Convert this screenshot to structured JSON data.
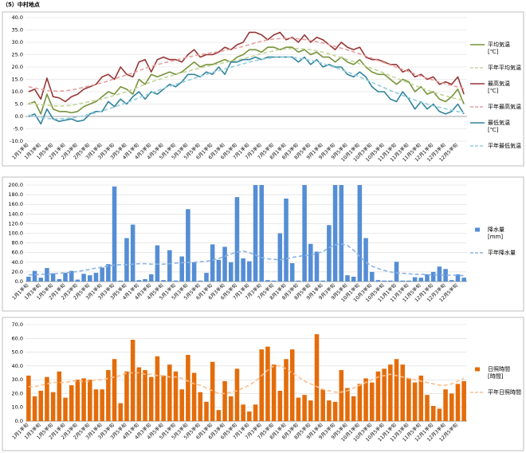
{
  "title": "（5）中村地点",
  "chart_data": [
    {
      "type": "line",
      "categories": [
        "1月1半旬",
        null,
        "1月3半旬",
        null,
        "1月5半旬",
        null,
        "2月1半旬",
        null,
        "2月3半旬",
        null,
        "2月5半旬",
        null,
        "3月1半旬",
        null,
        "3月3半旬",
        null,
        "3月5半旬",
        null,
        "4月1半旬",
        null,
        "4月3半旬",
        null,
        "4月5半旬",
        null,
        "5月1半旬",
        null,
        "5月3半旬",
        null,
        "5月5半旬",
        null,
        "6月1半旬",
        null,
        "6月3半旬",
        null,
        "6月5半旬",
        null,
        "7月1半旬",
        null,
        "7月3半旬",
        null,
        "7月5半旬",
        null,
        "8月1半旬",
        null,
        "8月3半旬",
        null,
        "8月5半旬",
        null,
        "9月1半旬",
        null,
        "9月3半旬",
        null,
        "9月5半旬",
        null,
        "10月1半旬",
        null,
        "10月3半旬",
        null,
        "10月5半旬",
        null,
        "11月1半旬",
        null,
        "11月3半旬",
        null,
        "11月5半旬",
        null,
        "12月1半旬",
        null,
        "12月3半旬",
        null,
        "12月5半旬",
        null
      ],
      "ylim": [
        -10,
        40
      ],
      "yticks": [
        {
          "value": -10,
          "label": "-10.0"
        },
        {
          "value": -5,
          "label": "-5.0"
        },
        {
          "value": 0,
          "label": "0.0"
        },
        {
          "value": 5,
          "label": "5.0"
        },
        {
          "value": 10,
          "label": "10.0"
        },
        {
          "value": 15,
          "label": "15.0"
        },
        {
          "value": 20,
          "label": "20.0"
        },
        {
          "value": 25,
          "label": "25.0"
        },
        {
          "value": 30,
          "label": "30.0"
        },
        {
          "value": 35,
          "label": "35.0"
        },
        {
          "value": 40,
          "label": "40.0"
        }
      ],
      "grid": true,
      "series": [
        {
          "name": "平均気温\n[℃]",
          "color": "#77933c",
          "dash": false,
          "values": [
            5,
            6,
            1,
            9,
            3,
            2,
            2,
            1.5,
            2,
            4,
            5,
            6,
            8,
            10,
            9,
            12,
            11,
            9,
            15,
            13,
            17,
            16,
            17,
            18,
            17,
            18,
            20,
            22,
            20,
            21,
            21,
            22,
            23,
            22,
            24,
            25,
            27,
            27,
            26,
            28,
            28,
            27,
            28,
            28,
            26,
            27,
            25,
            26,
            24,
            24,
            22,
            24,
            22,
            21,
            23,
            20,
            18,
            17,
            17,
            15,
            13,
            15,
            14,
            10,
            12,
            9,
            10,
            7,
            6,
            8,
            11,
            5
          ]
        },
        {
          "name": "平年平均気温",
          "color": "#c3d69b",
          "dash": true,
          "values": [
            5.5,
            5,
            4.8,
            4.5,
            4.3,
            4.2,
            4.3,
            4.5,
            5,
            5.5,
            6,
            6.5,
            7,
            7.8,
            8.5,
            9.3,
            10,
            11,
            12,
            13,
            14,
            14.8,
            15.5,
            16.3,
            17,
            17.7,
            18.3,
            19,
            19.6,
            20.2,
            20.8,
            21.3,
            21.8,
            22.3,
            22.8,
            23.3,
            24,
            24.7,
            25.4,
            26,
            26.5,
            27,
            27.3,
            27.5,
            27.5,
            27.3,
            27,
            26.5,
            26,
            25.3,
            24.5,
            23.8,
            23,
            22.2,
            21.3,
            20.4,
            19.4,
            18.5,
            17.5,
            16.5,
            15.5,
            14.5,
            13.5,
            12.5,
            11.6,
            10.7,
            9.8,
            9,
            8.3,
            7.6,
            7,
            6.4
          ]
        },
        {
          "name": "最高気温\n[℃]",
          "color": "#953735",
          "dash": false,
          "values": [
            10,
            11,
            7,
            15.5,
            8,
            7.5,
            6,
            8,
            9,
            11,
            12,
            13,
            16,
            17,
            15,
            20,
            17,
            16,
            22,
            23,
            18,
            23,
            24,
            23,
            23,
            22,
            25,
            27,
            24,
            25,
            25,
            26,
            28,
            27,
            29,
            30,
            34,
            34,
            33,
            31,
            33,
            34,
            31,
            32,
            30,
            33,
            30,
            32,
            31,
            29,
            27,
            30,
            28,
            27,
            28,
            24,
            23,
            23,
            22,
            21,
            21,
            18,
            19,
            16,
            17,
            15,
            16,
            13,
            14,
            13,
            16,
            9
          ]
        },
        {
          "name": "平年最高気温",
          "color": "#e6a0a0",
          "dash": true,
          "values": [
            12,
            11.5,
            11,
            10.5,
            10.3,
            10.2,
            10.4,
            10.7,
            11.2,
            11.8,
            12.4,
            13,
            13.6,
            14.4,
            15.2,
            16,
            16.8,
            17.6,
            18.5,
            19.4,
            20.2,
            21,
            21.6,
            22.2,
            22.8,
            23.4,
            24,
            24.5,
            25,
            25.4,
            25.8,
            26.2,
            26.7,
            27.2,
            27.7,
            28.3,
            29,
            29.8,
            30.4,
            31,
            31.3,
            31.5,
            31.6,
            31.6,
            31.4,
            31.1,
            30.7,
            30.2,
            29.7,
            29,
            28.3,
            27.6,
            26.9,
            26.1,
            25.3,
            24.4,
            23.5,
            22.6,
            21.7,
            20.8,
            19.9,
            19,
            18.1,
            17.2,
            16.3,
            15.5,
            14.7,
            13.9,
            13.2,
            12.5,
            11.9,
            11.3
          ]
        },
        {
          "name": "最低気温\n[℃]",
          "color": "#31849b",
          "dash": false,
          "values": [
            0,
            1,
            -3,
            3,
            -1,
            -2,
            -1.5,
            -1,
            -2,
            -1.5,
            1,
            2,
            2,
            6,
            4,
            7,
            5,
            8,
            10,
            7,
            10,
            9,
            11,
            13,
            12,
            14,
            17,
            17,
            16,
            18,
            17,
            20,
            17,
            22,
            22,
            23,
            23,
            24,
            23,
            24,
            24,
            24,
            24,
            24,
            22,
            24,
            21,
            23,
            20,
            21,
            20,
            20,
            17,
            16,
            18,
            16,
            12,
            10,
            10,
            7,
            6,
            10,
            7,
            3,
            6,
            3,
            5,
            2,
            1,
            2,
            5,
            1
          ]
        },
        {
          "name": "平年最低気温",
          "color": "#93cddd",
          "dash": true,
          "values": [
            0.5,
            0,
            -0.5,
            -0.8,
            -1,
            -1,
            -0.9,
            -0.6,
            -0.2,
            0.3,
            0.9,
            1.5,
            2.2,
            3,
            3.8,
            4.7,
            5.6,
            6.5,
            7.5,
            8.5,
            9.5,
            10.4,
            11.3,
            12.2,
            13,
            13.8,
            14.6,
            15.4,
            16.2,
            17,
            17.8,
            18.5,
            19.2,
            19.9,
            20.6,
            21.3,
            22,
            22.6,
            23.1,
            23.5,
            23.8,
            24,
            24,
            23.9,
            23.6,
            23.2,
            22.7,
            22.1,
            21.4,
            20.6,
            19.8,
            18.9,
            18,
            17,
            16,
            14.9,
            13.8,
            12.7,
            11.6,
            10.5,
            9.5,
            8.5,
            7.5,
            6.6,
            5.8,
            5,
            4.3,
            3.7,
            3.1,
            2.5,
            2,
            1.5
          ]
        }
      ]
    },
    {
      "type": "combo",
      "categories": [
        "1月1半旬",
        null,
        "1月3半旬",
        null,
        "1月5半旬",
        null,
        "2月1半旬",
        null,
        "2月3半旬",
        null,
        "2月5半旬",
        null,
        "3月1半旬",
        null,
        "3月3半旬",
        null,
        "3月5半旬",
        null,
        "4月1半旬",
        null,
        "4月3半旬",
        null,
        "4月5半旬",
        null,
        "5月1半旬",
        null,
        "5月3半旬",
        null,
        "5月5半旬",
        null,
        "6月1半旬",
        null,
        "6月3半旬",
        null,
        "6月5半旬",
        null,
        "7月1半旬",
        null,
        "7月3半旬",
        null,
        "7月5半旬",
        null,
        "8月1半旬",
        null,
        "8月3半旬",
        null,
        "8月5半旬",
        null,
        "9月1半旬",
        null,
        "9月3半旬",
        null,
        "9月5半旬",
        null,
        "10月1半旬",
        null,
        "10月3半旬",
        null,
        "10月5半旬",
        null,
        "11月1半旬",
        null,
        "11月3半旬",
        null,
        "11月5半旬",
        null,
        "12月1半旬",
        null,
        "12月3半旬",
        null,
        "12月5半旬",
        null
      ],
      "ylim": [
        0,
        200
      ],
      "yticks": [
        {
          "value": 0,
          "label": "0.0"
        },
        {
          "value": 20,
          "label": "20.0"
        },
        {
          "value": 40,
          "label": "40.0"
        },
        {
          "value": 60,
          "label": "60.0"
        },
        {
          "value": 80,
          "label": "80.0"
        },
        {
          "value": 100,
          "label": "100.0"
        },
        {
          "value": 120,
          "label": "120.0"
        },
        {
          "value": 140,
          "label": "140.0"
        },
        {
          "value": 160,
          "label": "160.0"
        },
        {
          "value": 180,
          "label": "180.0"
        },
        {
          "value": 200,
          "label": "200.0"
        }
      ],
      "grid": true,
      "series": [
        {
          "name": "降水量\n[mm]",
          "type": "bar",
          "color": "#558ed5",
          "values": [
            10,
            22,
            8,
            28,
            17,
            5,
            18,
            22,
            4,
            16,
            13,
            18,
            29,
            36,
            197,
            2,
            90,
            118,
            3,
            5,
            15,
            75,
            3,
            65,
            2,
            52,
            150,
            40,
            2,
            18,
            77,
            45,
            72,
            40,
            175,
            48,
            42,
            200,
            200,
            3,
            2,
            100,
            172,
            38,
            2,
            200,
            78,
            62,
            2,
            117,
            200,
            200,
            13,
            10,
            200,
            90,
            20,
            3,
            2,
            2,
            41,
            2,
            2,
            9,
            8,
            15,
            20,
            31,
            26,
            3,
            15,
            8
          ]
        },
        {
          "name": "平年降水量",
          "type": "line",
          "color": "#8db4e2",
          "dash": true,
          "values": [
            14,
            14,
            15,
            15,
            16,
            17,
            18,
            19,
            21,
            23,
            25,
            28,
            30,
            32,
            34,
            35,
            35,
            36,
            37,
            37,
            36,
            36,
            36,
            37,
            38,
            39,
            40,
            40,
            41,
            42,
            44,
            48,
            52,
            57,
            61,
            63,
            60,
            55,
            50,
            47,
            46,
            45,
            47,
            50,
            52,
            54,
            55,
            58,
            62,
            70,
            76,
            78,
            75,
            65,
            52,
            40,
            32,
            27,
            23,
            20,
            18,
            17,
            16,
            15,
            15,
            14,
            14,
            14,
            13,
            13,
            13,
            12
          ]
        }
      ]
    },
    {
      "type": "combo",
      "categories": [
        "1月1半旬",
        null,
        "1月3半旬",
        null,
        "1月5半旬",
        null,
        "2月1半旬",
        null,
        "2月3半旬",
        null,
        "2月5半旬",
        null,
        "3月1半旬",
        null,
        "3月3半旬",
        null,
        "3月5半旬",
        null,
        "4月1半旬",
        null,
        "4月3半旬",
        null,
        "4月5半旬",
        null,
        "5月1半旬",
        null,
        "5月3半旬",
        null,
        "5月5半旬",
        null,
        "6月1半旬",
        null,
        "6月3半旬",
        null,
        "6月5半旬",
        null,
        "7月1半旬",
        null,
        "7月3半旬",
        null,
        "7月5半旬",
        null,
        "8月1半旬",
        null,
        "8月3半旬",
        null,
        "8月5半旬",
        null,
        "9月1半旬",
        null,
        "9月3半旬",
        null,
        "9月5半旬",
        null,
        "10月1半旬",
        null,
        "10月3半旬",
        null,
        "10月5半旬",
        null,
        "11月1半旬",
        null,
        "11月3半旬",
        null,
        "11月5半旬",
        null,
        "12月1半旬",
        null,
        "12月3半旬",
        null,
        "12月5半旬",
        null
      ],
      "ylim": [
        0,
        70
      ],
      "yticks": [
        {
          "value": 0,
          "label": "0.0"
        },
        {
          "value": 10,
          "label": "10.0"
        },
        {
          "value": 20,
          "label": "20.0"
        },
        {
          "value": 30,
          "label": "30.0"
        },
        {
          "value": 40,
          "label": "40.0"
        },
        {
          "value": 50,
          "label": "50.0"
        },
        {
          "value": 60,
          "label": "60.0"
        },
        {
          "value": 70,
          "label": "70.0"
        }
      ],
      "grid": true,
      "series": [
        {
          "name": "日照時間\n[時間]",
          "type": "bar",
          "color": "#e46c0a",
          "values": [
            33,
            18,
            22,
            32,
            21,
            36,
            17,
            26,
            30,
            31,
            30,
            23,
            23,
            37,
            45,
            13,
            36,
            59,
            39,
            37,
            32,
            47,
            33,
            41,
            36,
            23,
            48,
            35,
            21,
            14,
            43,
            8,
            29,
            18,
            38,
            12,
            7,
            12,
            52,
            54,
            41,
            22,
            45,
            52,
            17,
            19,
            15,
            63,
            23,
            15,
            14,
            37,
            24,
            18,
            27,
            31,
            28,
            36,
            38,
            41,
            45,
            41,
            31,
            28,
            33,
            19,
            11,
            9,
            23,
            20,
            27,
            29
          ]
        },
        {
          "name": "平年日照時間",
          "type": "line",
          "color": "#fac090",
          "dash": true,
          "values": [
            25,
            25,
            26,
            27,
            28,
            28,
            28,
            29,
            29,
            29,
            29,
            30,
            30,
            31,
            32,
            33,
            35,
            35,
            35,
            34,
            34,
            33,
            33,
            32,
            32,
            31,
            29,
            27,
            26,
            24,
            22,
            20,
            20,
            21,
            22,
            24,
            26,
            29,
            33,
            37,
            40,
            40,
            38,
            35,
            32,
            29,
            27,
            25,
            23,
            22,
            21,
            21,
            22,
            24,
            26,
            28,
            30,
            32,
            33,
            34,
            33,
            32,
            31,
            30,
            29,
            28,
            27,
            26,
            26,
            27,
            29,
            31
          ]
        }
      ]
    }
  ]
}
